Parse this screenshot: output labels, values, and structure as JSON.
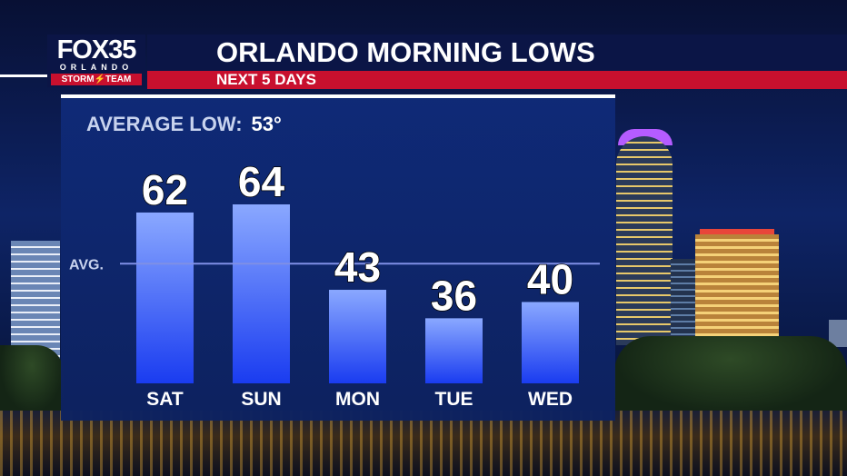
{
  "branding": {
    "station": "FOX35",
    "city": "ORLANDO",
    "team": "STORM⚡TEAM"
  },
  "header": {
    "title": "ORLANDO MORNING LOWS",
    "subtitle": "NEXT 5 DAYS"
  },
  "average": {
    "label": "AVERAGE LOW:",
    "value": "53°",
    "line_label": "AVG."
  },
  "colors": {
    "header_bg": "#0b1546",
    "subheader_bg": "#c8102e",
    "panel_bg": "#0f2a78",
    "bar_top": "#8aa8ff",
    "bar_bottom": "#1a3cf0",
    "avg_line": "#7f8fe6"
  },
  "chart_data": {
    "type": "bar",
    "categories": [
      "SAT",
      "SUN",
      "MON",
      "TUE",
      "WED"
    ],
    "values": [
      62,
      64,
      43,
      36,
      40
    ],
    "average": 53,
    "title": "ORLANDO MORNING LOWS",
    "subtitle": "NEXT 5 DAYS",
    "xlabel": "",
    "ylabel": "",
    "ylim": [
      20,
      66
    ],
    "grid": false,
    "data_labels": [
      "62",
      "64",
      "43",
      "36",
      "40"
    ]
  }
}
